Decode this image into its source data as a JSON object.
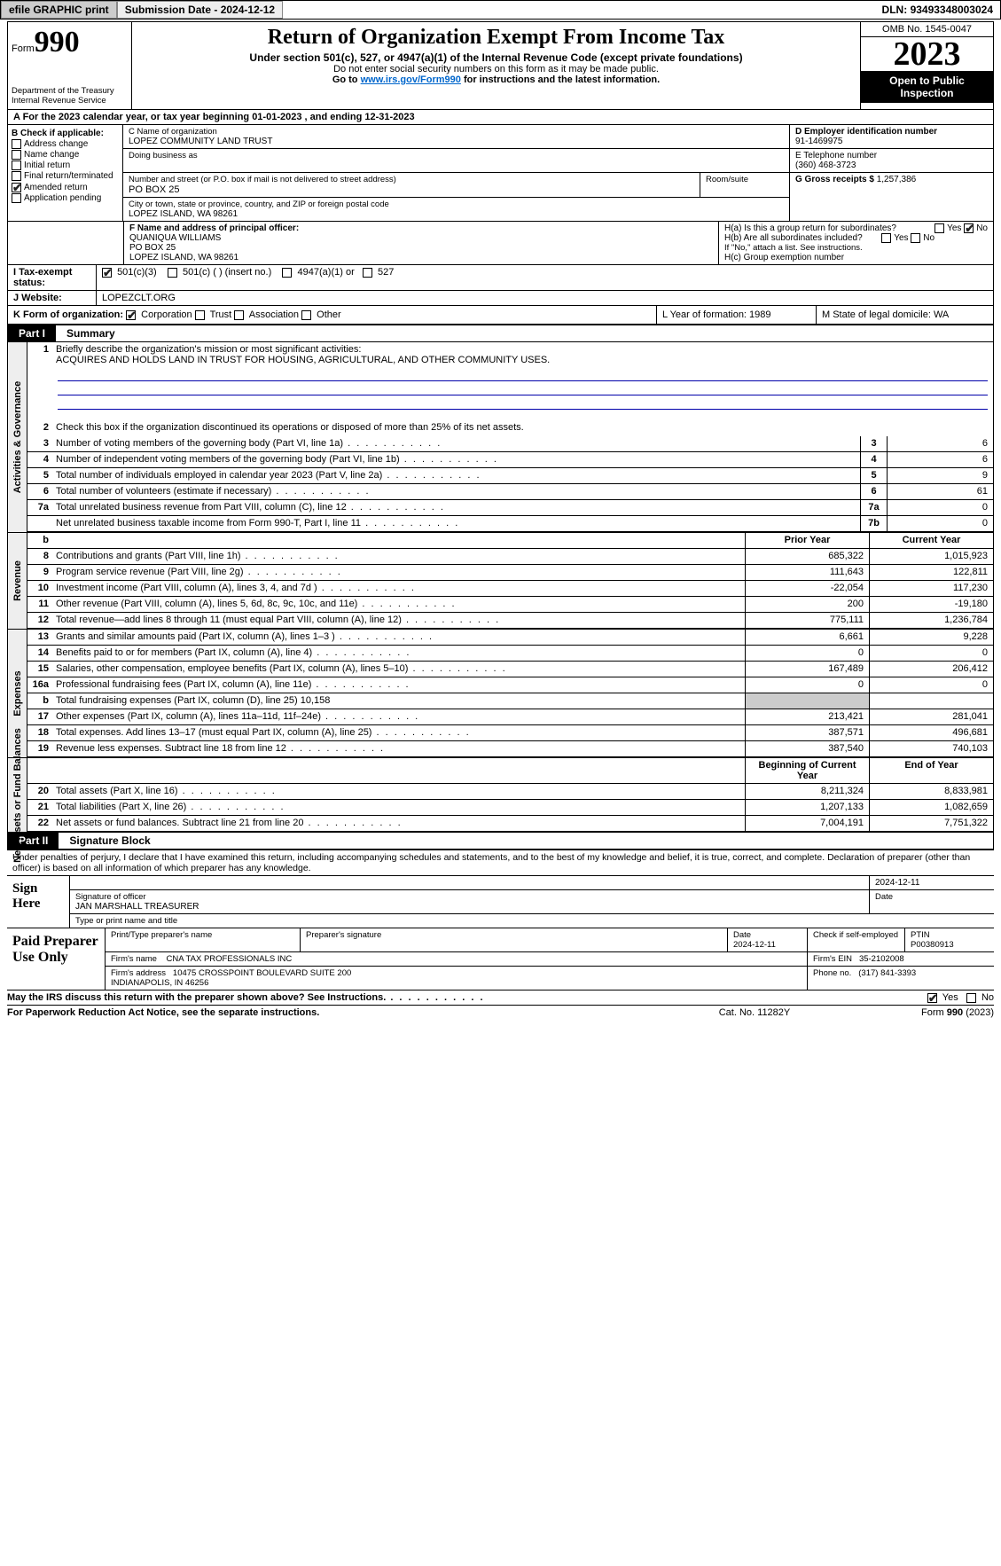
{
  "topbar": {
    "efile": "efile GRAPHIC print",
    "submission": "Submission Date - 2024-12-12",
    "dln_label": "DLN:",
    "dln": "93493348003024"
  },
  "header": {
    "form_word": "Form",
    "form_no": "990",
    "dept": "Department of the Treasury Internal Revenue Service",
    "title": "Return of Organization Exempt From Income Tax",
    "sub1": "Under section 501(c), 527, or 4947(a)(1) of the Internal Revenue Code (except private foundations)",
    "sub2": "Do not enter social security numbers on this form as it may be made public.",
    "sub3_pre": "Go to ",
    "sub3_link": "www.irs.gov/Form990",
    "sub3_post": " for instructions and the latest information.",
    "omb": "OMB No. 1545-0047",
    "year": "2023",
    "open": "Open to Public Inspection"
  },
  "rowA": "A  For the 2023 calendar year, or tax year beginning 01-01-2023   , and ending 12-31-2023",
  "boxB": {
    "label": "B Check if applicable:",
    "opts": [
      "Address change",
      "Name change",
      "Initial return",
      "Final return/terminated",
      "Amended return",
      "Application pending"
    ],
    "checked_idx": 4
  },
  "boxC": {
    "name_lbl": "C Name of organization",
    "name": "LOPEZ COMMUNITY LAND TRUST",
    "dba_lbl": "Doing business as",
    "addr_lbl": "Number and street (or P.O. box if mail is not delivered to street address)",
    "room_lbl": "Room/suite",
    "addr": "PO BOX 25",
    "city_lbl": "City or town, state or province, country, and ZIP or foreign postal code",
    "city": "LOPEZ ISLAND, WA  98261"
  },
  "boxD": {
    "lbl": "D Employer identification number",
    "val": "91-1469975"
  },
  "boxE": {
    "lbl": "E Telephone number",
    "val": "(360) 468-3723"
  },
  "boxG": {
    "lbl": "G Gross receipts $",
    "val": "1,257,386"
  },
  "boxF": {
    "lbl": "F  Name and address of principal officer:",
    "name": "QUANIQUA WILLIAMS",
    "addr1": "PO BOX 25",
    "addr2": "LOPEZ ISLAND, WA  98261"
  },
  "boxH": {
    "a": "H(a)  Is this a group return for subordinates?",
    "b": "H(b)  Are all subordinates included?",
    "b2": "If \"No,\" attach a list. See instructions.",
    "c": "H(c)  Group exemption number",
    "yes": "Yes",
    "no": "No"
  },
  "rowI": {
    "lbl": "I   Tax-exempt status:",
    "o1": "501(c)(3)",
    "o2": "501(c) (  ) (insert no.)",
    "o3": "4947(a)(1) or",
    "o4": "527"
  },
  "rowJ": {
    "lbl": "J   Website:",
    "val": "LOPEZCLT.ORG"
  },
  "rowK": {
    "lbl": "K Form of organization:",
    "opts": [
      "Corporation",
      "Trust",
      "Association",
      "Other"
    ],
    "L": "L Year of formation: 1989",
    "M": "M State of legal domicile: WA"
  },
  "part1": {
    "label": "Part I",
    "title": "Summary"
  },
  "mission": {
    "num": "1",
    "lbl": "Briefly describe the organization's mission or most significant activities:",
    "text": "ACQUIRES AND HOLDS LAND IN TRUST FOR HOUSING, AGRICULTURAL, AND OTHER COMMUNITY USES."
  },
  "gov": {
    "tab": "Activities & Governance",
    "l2": "Check this box      if the organization discontinued its operations or disposed of more than 25% of its net assets.",
    "rows": [
      {
        "n": "3",
        "d": "Number of voting members of the governing body (Part VI, line 1a)",
        "bn": "3",
        "v": "6"
      },
      {
        "n": "4",
        "d": "Number of independent voting members of the governing body (Part VI, line 1b)",
        "bn": "4",
        "v": "6"
      },
      {
        "n": "5",
        "d": "Total number of individuals employed in calendar year 2023 (Part V, line 2a)",
        "bn": "5",
        "v": "9"
      },
      {
        "n": "6",
        "d": "Total number of volunteers (estimate if necessary)",
        "bn": "6",
        "v": "61"
      },
      {
        "n": "7a",
        "d": "Total unrelated business revenue from Part VIII, column (C), line 12",
        "bn": "7a",
        "v": "0"
      },
      {
        "n": "",
        "d": "Net unrelated business taxable income from Form 990-T, Part I, line 11",
        "bn": "7b",
        "v": "0"
      }
    ]
  },
  "rev": {
    "tab": "Revenue",
    "hdr_py": "Prior Year",
    "hdr_cy": "Current Year",
    "rows": [
      {
        "n": "8",
        "d": "Contributions and grants (Part VIII, line 1h)",
        "py": "685,322",
        "cy": "1,015,923"
      },
      {
        "n": "9",
        "d": "Program service revenue (Part VIII, line 2g)",
        "py": "111,643",
        "cy": "122,811"
      },
      {
        "n": "10",
        "d": "Investment income (Part VIII, column (A), lines 3, 4, and 7d )",
        "py": "-22,054",
        "cy": "117,230"
      },
      {
        "n": "11",
        "d": "Other revenue (Part VIII, column (A), lines 5, 6d, 8c, 9c, 10c, and 11e)",
        "py": "200",
        "cy": "-19,180"
      },
      {
        "n": "12",
        "d": "Total revenue—add lines 8 through 11 (must equal Part VIII, column (A), line 12)",
        "py": "775,111",
        "cy": "1,236,784"
      }
    ]
  },
  "exp": {
    "tab": "Expenses",
    "rows": [
      {
        "n": "13",
        "d": "Grants and similar amounts paid (Part IX, column (A), lines 1–3 )",
        "py": "6,661",
        "cy": "9,228"
      },
      {
        "n": "14",
        "d": "Benefits paid to or for members (Part IX, column (A), line 4)",
        "py": "0",
        "cy": "0"
      },
      {
        "n": "15",
        "d": "Salaries, other compensation, employee benefits (Part IX, column (A), lines 5–10)",
        "py": "167,489",
        "cy": "206,412"
      },
      {
        "n": "16a",
        "d": "Professional fundraising fees (Part IX, column (A), line 11e)",
        "py": "0",
        "cy": "0"
      },
      {
        "n": "b",
        "d": "Total fundraising expenses (Part IX, column (D), line 25) 10,158",
        "shade": true
      },
      {
        "n": "17",
        "d": "Other expenses (Part IX, column (A), lines 11a–11d, 11f–24e)",
        "py": "213,421",
        "cy": "281,041"
      },
      {
        "n": "18",
        "d": "Total expenses. Add lines 13–17 (must equal Part IX, column (A), line 25)",
        "py": "387,571",
        "cy": "496,681"
      },
      {
        "n": "19",
        "d": "Revenue less expenses. Subtract line 18 from line 12",
        "py": "387,540",
        "cy": "740,103"
      }
    ]
  },
  "na": {
    "tab": "Net Assets or Fund Balances",
    "hdr_py": "Beginning of Current Year",
    "hdr_cy": "End of Year",
    "rows": [
      {
        "n": "20",
        "d": "Total assets (Part X, line 16)",
        "py": "8,211,324",
        "cy": "8,833,981"
      },
      {
        "n": "21",
        "d": "Total liabilities (Part X, line 26)",
        "py": "1,207,133",
        "cy": "1,082,659"
      },
      {
        "n": "22",
        "d": "Net assets or fund balances. Subtract line 21 from line 20",
        "py": "7,004,191",
        "cy": "7,751,322"
      }
    ]
  },
  "part2": {
    "label": "Part II",
    "title": "Signature Block"
  },
  "sig": {
    "decl": "Under penalties of perjury, I declare that I have examined this return, including accompanying schedules and statements, and to the best of my knowledge and belief, it is true, correct, and complete. Declaration of preparer (other than officer) is based on all information of which preparer has any knowledge.",
    "here": "Sign Here",
    "date": "2024-12-11",
    "sig_lbl": "Signature of officer",
    "date_lbl": "Date",
    "officer": "JAN MARSHALL  TREASURER",
    "type_lbl": "Type or print name and title"
  },
  "prep": {
    "label": "Paid Preparer Use Only",
    "h1": "Print/Type preparer's name",
    "h2": "Preparer's signature",
    "h3": "Date",
    "h3v": "2024-12-11",
    "h4": "Check       if self-employed",
    "h5": "PTIN",
    "h5v": "P00380913",
    "firm_lbl": "Firm's name",
    "firm": "CNA TAX PROFESSIONALS INC",
    "ein_lbl": "Firm's EIN",
    "ein": "35-2102008",
    "addr_lbl": "Firm's address",
    "addr": "10475 CROSSPOINT BOULEVARD SUITE 200\nINDIANAPOLIS, IN  46256",
    "phone_lbl": "Phone no.",
    "phone": "(317) 841-3393",
    "discuss": "May the IRS discuss this return with the preparer shown above? See Instructions.",
    "yes": "Yes",
    "no": "No"
  },
  "footer": {
    "pra": "For Paperwork Reduction Act Notice, see the separate instructions.",
    "cat": "Cat. No. 11282Y",
    "form": "Form 990 (2023)"
  }
}
